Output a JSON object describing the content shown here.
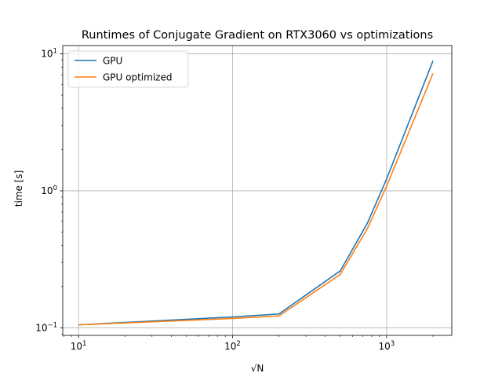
{
  "chart_data": {
    "type": "line",
    "title": "Runtimes of Conjugate Gradient on RTX3060 vs optimizations",
    "xlabel": "√N",
    "ylabel": "time [s]",
    "xscale": "log",
    "yscale": "log",
    "xlim": [
      7.9,
      2650
    ],
    "ylim": [
      0.088,
      11.5
    ],
    "xticks": [
      {
        "value": 10,
        "base": "10",
        "exp": "1"
      },
      {
        "value": 100,
        "base": "10",
        "exp": "2"
      },
      {
        "value": 1000,
        "base": "10",
        "exp": "3"
      }
    ],
    "yticks": [
      {
        "value": 0.1,
        "base": "10",
        "exp": "−1"
      },
      {
        "value": 1,
        "base": "10",
        "exp": "0"
      },
      {
        "value": 10,
        "base": "10",
        "exp": "1"
      }
    ],
    "grid": true,
    "legend_position": "upper-left",
    "series": [
      {
        "name": "GPU",
        "color": "#1f77b4",
        "x": [
          10,
          100,
          200,
          500,
          750,
          1000,
          2000
        ],
        "y": [
          0.105,
          0.12,
          0.126,
          0.26,
          0.58,
          1.22,
          8.9
        ]
      },
      {
        "name": "GPU optimized",
        "color": "#ff7f0e",
        "x": [
          10,
          100,
          200,
          500,
          750,
          1000,
          2000
        ],
        "y": [
          0.105,
          0.117,
          0.122,
          0.245,
          0.53,
          1.08,
          7.2
        ]
      }
    ]
  }
}
